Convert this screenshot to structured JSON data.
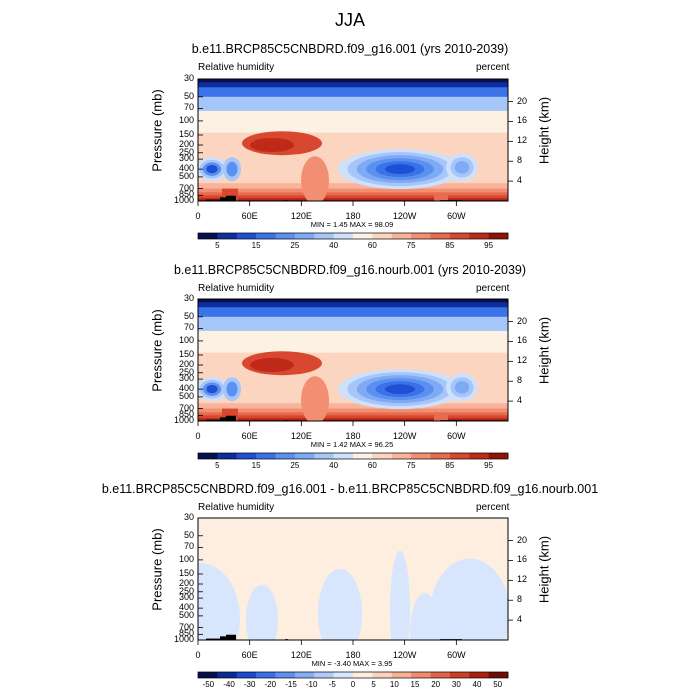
{
  "main_title": "JJA",
  "panels": [
    {
      "title": "b.e11.BRCP85C5CNBDRD.f09_g16.001 (yrs 2010-2039)",
      "left_label": "Relative humidity",
      "right_label": "percent",
      "minmax": "MIN = 1.45  MAX = 98.09",
      "ylabel": "Pressure (mb)",
      "rlabel": "Height (km)"
    },
    {
      "title": "b.e11.BRCP85C5CNBDRD.f09_g16.nourb.001 (yrs 2010-2039)",
      "left_label": "Relative humidity",
      "right_label": "percent",
      "minmax": "MIN = 1.42  MAX = 96.25",
      "ylabel": "Pressure (mb)",
      "rlabel": "Height (km)"
    },
    {
      "title": "b.e11.BRCP85C5CNBDRD.f09_g16.001 - b.e11.BRCP85C5CNBDRD.f09_g16.nourb.001",
      "left_label": "Relative humidity",
      "right_label": "percent",
      "minmax": "MIN = -3.40  MAX = 3.95",
      "ylabel": "Pressure (mb)",
      "rlabel": "Height (km)"
    }
  ],
  "chart_data": [
    {
      "type": "heatmap",
      "title": "b.e11.BRCP85C5CNBDRD.f09_g16.001 (yrs 2010-2039)",
      "xlabel": "",
      "ylabel": "Pressure (mb)",
      "y2label": "Height (km)",
      "x_ticks": [
        "0",
        "60E",
        "120E",
        "180",
        "120W",
        "60W"
      ],
      "y_ticks": [
        "30",
        "50",
        "70",
        "100",
        "150",
        "200",
        "250",
        "300",
        "400",
        "500",
        "700",
        "850",
        "1000"
      ],
      "y2_ticks": [
        "20",
        "16",
        "12",
        "8",
        "4"
      ],
      "colorbar_labels": [
        "5",
        "15",
        "25",
        "40",
        "60",
        "75",
        "85",
        "95"
      ],
      "colorbar_levels": [
        5,
        10,
        15,
        20,
        25,
        30,
        40,
        50,
        60,
        70,
        75,
        80,
        85,
        90,
        95
      ],
      "min": 1.45,
      "max": 98.09,
      "units": "percent"
    },
    {
      "type": "heatmap",
      "title": "b.e11.BRCP85C5CNBDRD.f09_g16.nourb.001 (yrs 2010-2039)",
      "xlabel": "",
      "ylabel": "Pressure (mb)",
      "y2label": "Height (km)",
      "x_ticks": [
        "0",
        "60E",
        "120E",
        "180",
        "120W",
        "60W"
      ],
      "y_ticks": [
        "30",
        "50",
        "70",
        "100",
        "150",
        "200",
        "250",
        "300",
        "400",
        "500",
        "700",
        "850",
        "1000"
      ],
      "y2_ticks": [
        "20",
        "16",
        "12",
        "8",
        "4"
      ],
      "colorbar_labels": [
        "5",
        "15",
        "25",
        "40",
        "60",
        "75",
        "85",
        "95"
      ],
      "colorbar_levels": [
        5,
        10,
        15,
        20,
        25,
        30,
        40,
        50,
        60,
        70,
        75,
        80,
        85,
        90,
        95
      ],
      "min": 1.42,
      "max": 96.25,
      "units": "percent"
    },
    {
      "type": "heatmap",
      "title": "b.e11.BRCP85C5CNBDRD.f09_g16.001 - b.e11.BRCP85C5CNBDRD.f09_g16.nourb.001",
      "xlabel": "",
      "ylabel": "Pressure (mb)",
      "y2label": "Height (km)",
      "x_ticks": [
        "0",
        "60E",
        "120E",
        "180",
        "120W",
        "60W"
      ],
      "y_ticks": [
        "30",
        "50",
        "70",
        "100",
        "150",
        "200",
        "250",
        "300",
        "400",
        "500",
        "700",
        "850",
        "1000"
      ],
      "y2_ticks": [
        "20",
        "16",
        "12",
        "8",
        "4"
      ],
      "colorbar_labels": [
        "-50",
        "-40",
        "-30",
        "-20",
        "-15",
        "-10",
        "-5",
        "0",
        "5",
        "10",
        "15",
        "20",
        "30",
        "40",
        "50"
      ],
      "min": -3.4,
      "max": 3.95,
      "units": "percent"
    }
  ],
  "colors": {
    "abs_scale": [
      "#08104d",
      "#0c2fa0",
      "#1f4fd4",
      "#3a72e8",
      "#5b8ff0",
      "#7eaaf5",
      "#a6c5f8",
      "#cfe0fb",
      "#fdf1e4",
      "#fbd5c0",
      "#f8b39a",
      "#f28f72",
      "#e86b4f",
      "#d84830",
      "#bf2a18",
      "#8e1408"
    ],
    "diff_scale": [
      "#05104a",
      "#0a2a96",
      "#1a4ad0",
      "#3a6ee6",
      "#5f8ff0",
      "#86aef6",
      "#b0cbf9",
      "#d7e6fc",
      "#fdeee0",
      "#fbd3bd",
      "#f7b095",
      "#f08a6c",
      "#e26448",
      "#cc3e26",
      "#a91f10",
      "#6e0b03"
    ],
    "topo": "#000000"
  }
}
